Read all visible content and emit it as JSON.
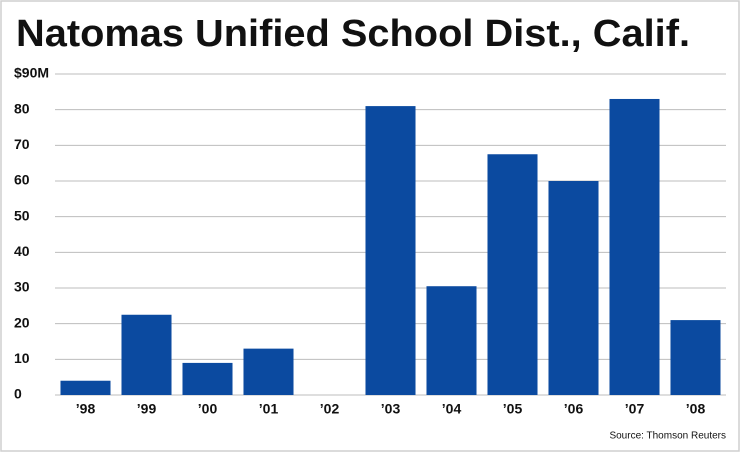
{
  "chart_data": {
    "type": "bar",
    "title": "Natomas Unified School Dist., Calif.",
    "source": "Source: Thomson Reuters",
    "categories": [
      "’98",
      "’99",
      "’00",
      "’01",
      "’02",
      "’03",
      "’04",
      "’05",
      "’06",
      "’07",
      "’08"
    ],
    "values": [
      4,
      22.5,
      9,
      13,
      0,
      81,
      30.5,
      67.5,
      60,
      83,
      21
    ],
    "color": "#0b4aa0",
    "ylim": [
      0,
      90
    ],
    "yticks": [
      0,
      10,
      20,
      30,
      40,
      50,
      60,
      70,
      80,
      {
        "value": 90,
        "label": "$90M"
      }
    ],
    "grid": true
  }
}
